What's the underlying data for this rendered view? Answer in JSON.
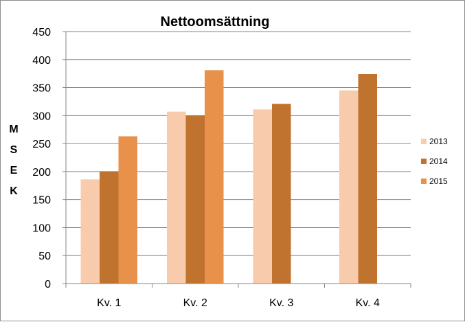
{
  "chart_data": {
    "type": "bar",
    "title": "Nettoomsättning",
    "ylabel": "MSEK",
    "xlabel": "",
    "categories": [
      "Kv. 1",
      "Kv. 2",
      "Kv. 3",
      "Kv. 4"
    ],
    "series": [
      {
        "name": "2013",
        "color": "#F8CBAD",
        "values": [
          186,
          307,
          311,
          345
        ]
      },
      {
        "name": "2014",
        "color": "#C0722F",
        "values": [
          200,
          300,
          321,
          374
        ]
      },
      {
        "name": "2015",
        "color": "#E8914A",
        "values": [
          263,
          381,
          null,
          null
        ]
      }
    ],
    "ylim": [
      0,
      450
    ],
    "yticks": [
      0,
      50,
      100,
      150,
      200,
      250,
      300,
      350,
      400,
      450
    ],
    "grid": true,
    "legend": "right"
  }
}
